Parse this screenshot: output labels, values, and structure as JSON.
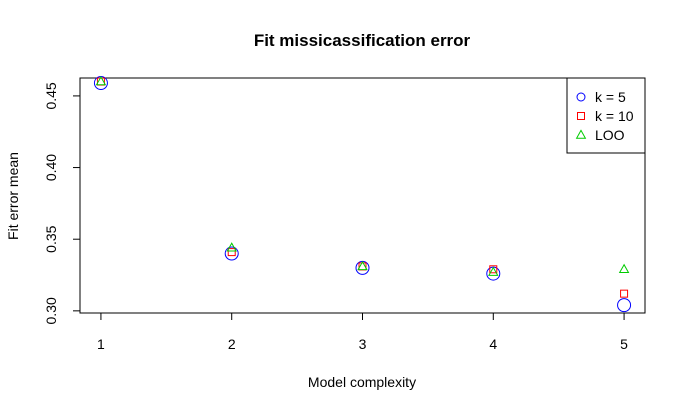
{
  "chart_data": {
    "type": "scatter",
    "title": "Fit missicassification error",
    "xlabel": "Model complexity",
    "ylabel": "Fit error mean",
    "x": [
      1,
      2,
      3,
      4,
      5
    ],
    "xlim": [
      0.84,
      5.16
    ],
    "ylim": [
      0.2985,
      0.4625
    ],
    "xticks": [
      "1",
      "2",
      "3",
      "4",
      "5"
    ],
    "yticks": [
      0.3,
      0.35,
      0.4,
      0.45
    ],
    "ytick_labels": [
      "0.30",
      "0.35",
      "0.40",
      "0.45"
    ],
    "grid": false,
    "legend_position": "top-right",
    "series": [
      {
        "name": "k = 5",
        "marker": "circle",
        "color": "#0000ff",
        "values": [
          0.459,
          0.34,
          0.33,
          0.326,
          0.304
        ]
      },
      {
        "name": "k = 10",
        "marker": "square",
        "color": "#ff0000",
        "values": [
          0.46,
          0.341,
          0.331,
          0.329,
          0.312
        ]
      },
      {
        "name": "LOO",
        "marker": "triangle",
        "color": "#00cc00",
        "values": [
          0.46,
          0.344,
          0.331,
          0.327,
          0.329
        ]
      }
    ]
  }
}
